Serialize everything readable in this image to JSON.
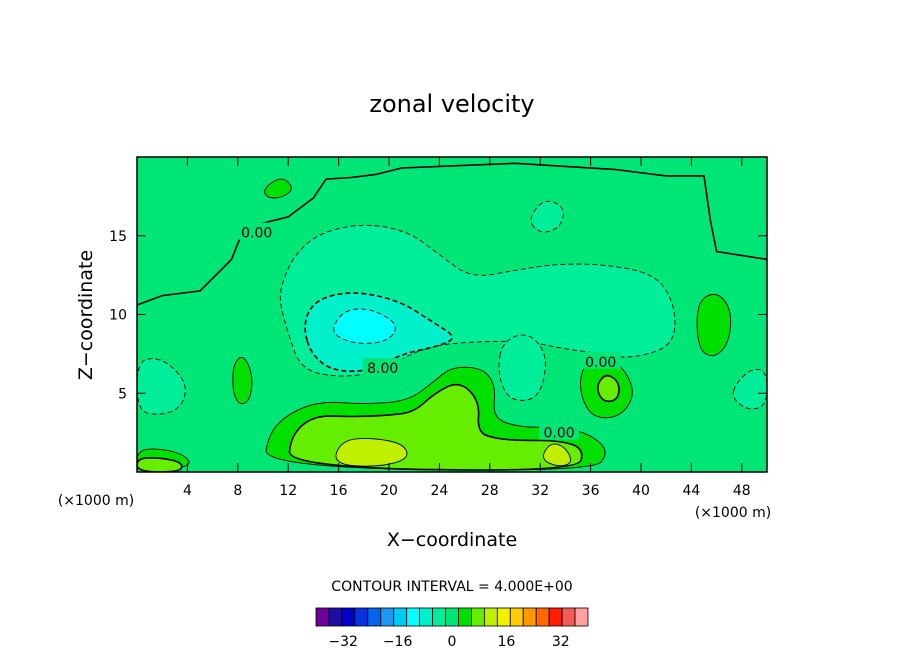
{
  "chart_data": {
    "type": "contour",
    "title": "zonal velocity",
    "xlabel": "X−coordinate",
    "ylabel": "Z−coordinate",
    "x_unit": "(×1000 m)",
    "y_unit": "(×1000 m)",
    "xlim": [
      0,
      50
    ],
    "ylim": [
      0,
      20
    ],
    "x_ticks": [
      4,
      8,
      12,
      16,
      20,
      24,
      28,
      32,
      36,
      40,
      44,
      48
    ],
    "y_ticks": [
      5,
      10,
      15
    ],
    "contour_interval_text": "CONTOUR INTERVAL = 4.000E+00",
    "contour_interval": 4,
    "contour_labels": [
      {
        "text": "0.00",
        "x": 9.5,
        "y": 15.2
      },
      {
        "text": "8.00",
        "x": 19.5,
        "y": 6.6
      },
      {
        "text": "0.00",
        "x": 36.8,
        "y": 7.0
      },
      {
        "text": "0.00",
        "x": 33.5,
        "y": 2.5
      }
    ],
    "field_regions": [
      {
        "value": 0,
        "points": [
          [
            0,
            0
          ],
          [
            50,
            0
          ],
          [
            50,
            20
          ],
          [
            0,
            20
          ]
        ]
      },
      {
        "value": -4,
        "points": [
          [
            11.5,
            12
          ],
          [
            12.5,
            13.8
          ],
          [
            14.5,
            15.2
          ],
          [
            18,
            15.8
          ],
          [
            21.5,
            15.3
          ],
          [
            24,
            13.8
          ],
          [
            26.5,
            12.3
          ],
          [
            30,
            12.8
          ],
          [
            33,
            13.2
          ],
          [
            37,
            13.2
          ],
          [
            41,
            12.6
          ],
          [
            42.5,
            11
          ],
          [
            42.8,
            9
          ],
          [
            42,
            7.8
          ],
          [
            39,
            7.2
          ],
          [
            37,
            7.5
          ],
          [
            34,
            7.8
          ],
          [
            31,
            8.3
          ],
          [
            27.5,
            8.3
          ],
          [
            24,
            8.1
          ],
          [
            22,
            7.6
          ],
          [
            19,
            6.3
          ],
          [
            16,
            6
          ],
          [
            13,
            6.5
          ],
          [
            12,
            8.8
          ],
          [
            11.3,
            10.8
          ]
        ]
      },
      {
        "value": -8,
        "points": [
          [
            13.2,
            9.2
          ],
          [
            13.8,
            10.6
          ],
          [
            15.5,
            11.3
          ],
          [
            18,
            11.4
          ],
          [
            21,
            10.8
          ],
          [
            23.5,
            9.5
          ],
          [
            25.5,
            8.5
          ],
          [
            23.5,
            7.9
          ],
          [
            21,
            7.5
          ],
          [
            18.5,
            6.4
          ],
          [
            15.5,
            6.4
          ],
          [
            13.8,
            7.5
          ]
        ]
      },
      {
        "value": -12,
        "points": [
          [
            15.5,
            9.2
          ],
          [
            16.5,
            10.3
          ],
          [
            18.5,
            10.4
          ],
          [
            20.8,
            9.4
          ],
          [
            20,
            8.3
          ],
          [
            17.5,
            8.1
          ],
          [
            15.8,
            8.6
          ]
        ]
      },
      {
        "value": -4,
        "points": [
          [
            0,
            7
          ],
          [
            1.5,
            7.3
          ],
          [
            3,
            6.6
          ],
          [
            4,
            5.4
          ],
          [
            3.5,
            4.1
          ],
          [
            2,
            3.6
          ],
          [
            0,
            3.8
          ]
        ]
      },
      {
        "value": -4,
        "points": [
          [
            29,
            8.3
          ],
          [
            31,
            8.9
          ],
          [
            32.5,
            7.6
          ],
          [
            32.3,
            5.6
          ],
          [
            31.4,
            4.5
          ],
          [
            29.4,
            4.6
          ],
          [
            28.6,
            6.4
          ]
        ]
      },
      {
        "value": -4,
        "points": [
          [
            47.5,
            5.6
          ],
          [
            48.8,
            6.6
          ],
          [
            50,
            6.4
          ],
          [
            50,
            4.2
          ],
          [
            48.5,
            3.9
          ],
          [
            47.2,
            4.7
          ]
        ]
      },
      {
        "value": -4,
        "points": [
          [
            31,
            16
          ],
          [
            32.3,
            17.4
          ],
          [
            34,
            16.8
          ],
          [
            33.6,
            15.5
          ],
          [
            32,
            15.1
          ]
        ]
      },
      {
        "value": 4,
        "points": [
          [
            10,
            0.3
          ],
          [
            10.5,
            2.5
          ],
          [
            12,
            3.7
          ],
          [
            14.5,
            4.5
          ],
          [
            18,
            4.3
          ],
          [
            21.5,
            4.5
          ],
          [
            23.5,
            5.7
          ],
          [
            25,
            6.7
          ],
          [
            27.5,
            6.6
          ],
          [
            28.5,
            5.4
          ],
          [
            28.2,
            3.4
          ],
          [
            30.6,
            2.8
          ],
          [
            33.5,
            2.9
          ],
          [
            36,
            2.4
          ],
          [
            37.5,
            1.3
          ],
          [
            36.2,
            0
          ]
        ]
      },
      {
        "value": 8,
        "points": [
          [
            12,
            0.3
          ],
          [
            12.2,
            2.3
          ],
          [
            14,
            3.6
          ],
          [
            17,
            3.5
          ],
          [
            20,
            3.6
          ],
          [
            22,
            3.8
          ],
          [
            23.6,
            5
          ],
          [
            25.6,
            5.8
          ],
          [
            27.2,
            4.5
          ],
          [
            27,
            2.5
          ],
          [
            28.6,
            2.1
          ],
          [
            30.6,
            2
          ],
          [
            33.5,
            2
          ],
          [
            35.5,
            1.5
          ],
          [
            35,
            0
          ]
        ]
      },
      {
        "value": 12,
        "points": [
          [
            15.5,
            0.5
          ],
          [
            16.2,
            2
          ],
          [
            18.5,
            2.2
          ],
          [
            21.2,
            1.8
          ],
          [
            21.6,
            0.8
          ],
          [
            19,
            0.3
          ]
        ]
      },
      {
        "value": 12,
        "points": [
          [
            32,
            0.8
          ],
          [
            32.8,
            1.9
          ],
          [
            34,
            1.6
          ],
          [
            34.6,
            0.6
          ],
          [
            33.5,
            0.3
          ]
        ]
      },
      {
        "value": 4,
        "points": [
          [
            35.2,
            6.4
          ],
          [
            36.4,
            7.5
          ],
          [
            38.5,
            6.8
          ],
          [
            39.6,
            5
          ],
          [
            38.4,
            3.5
          ],
          [
            36.2,
            3.4
          ],
          [
            35.2,
            4.8
          ]
        ]
      },
      {
        "value": 8,
        "points": [
          [
            36.4,
            5.4
          ],
          [
            37.2,
            6.3
          ],
          [
            38.3,
            5.7
          ],
          [
            38.2,
            4.6
          ],
          [
            37,
            4.4
          ]
        ]
      },
      {
        "value": 4,
        "points": [
          [
            44.4,
            10.8
          ],
          [
            46,
            11.5
          ],
          [
            47.2,
            10.3
          ],
          [
            47,
            8.2
          ],
          [
            45.8,
            7.2
          ],
          [
            44.5,
            7.8
          ]
        ]
      },
      {
        "value": 4,
        "points": [
          [
            0,
            1.4
          ],
          [
            1.8,
            1.5
          ],
          [
            3.8,
            1.1
          ],
          [
            4.4,
            0.3
          ],
          [
            0,
            0
          ]
        ]
      },
      {
        "value": 8,
        "points": [
          [
            0,
            0.9
          ],
          [
            2,
            0.9
          ],
          [
            3.6,
            0.6
          ],
          [
            3.5,
            0
          ],
          [
            0,
            0
          ]
        ]
      },
      {
        "value": 4,
        "points": [
          [
            7.6,
            6.8
          ],
          [
            8.4,
            7.5
          ],
          [
            9.2,
            6.2
          ],
          [
            9,
            4.6
          ],
          [
            8.2,
            4.2
          ],
          [
            7.6,
            5
          ]
        ]
      },
      {
        "value": 4,
        "points": [
          [
            10,
            18
          ],
          [
            11.5,
            18.8
          ],
          [
            12.5,
            18
          ],
          [
            11.5,
            17.4
          ],
          [
            10.3,
            17.4
          ]
        ]
      }
    ],
    "colorbar": {
      "tick_labels": [
        "−32",
        "−16",
        "0",
        "16",
        "32"
      ],
      "tick_values": [
        -32,
        -16,
        0,
        16,
        32
      ],
      "levels": [
        -40,
        -36,
        -32,
        -28,
        -24,
        -20,
        -16,
        -12,
        -8,
        -4,
        0,
        4,
        8,
        12,
        16,
        20,
        24,
        28,
        32,
        36,
        40
      ],
      "colors": [
        "#6d009a",
        "#1d0ea0",
        "#0000c8",
        "#0a33e0",
        "#0066ee",
        "#1a99f2",
        "#00ccf2",
        "#00ffff",
        "#00f0cc",
        "#00ee99",
        "#00e676",
        "#00e000",
        "#66ee00",
        "#c0f000",
        "#f0f000",
        "#ffcc00",
        "#ff9a00",
        "#ff6a00",
        "#ff1e00",
        "#f45a5a",
        "#ff9f9f"
      ]
    }
  }
}
